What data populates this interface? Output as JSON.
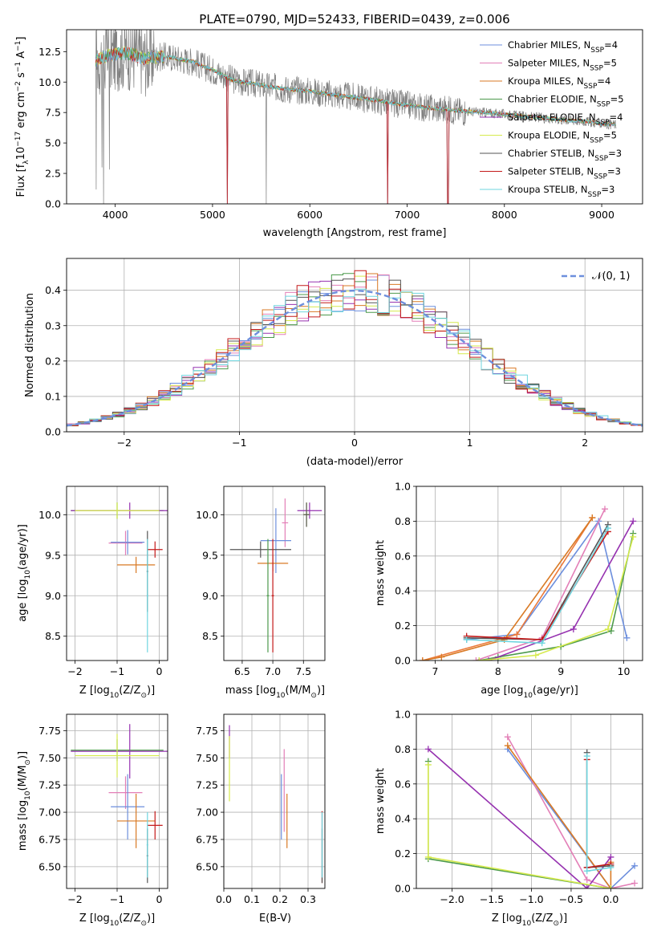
{
  "figure": {
    "title": "PLATE=0790, MJD=52433, FIBERID=0439, z=0.006"
  },
  "palette": {
    "ch_miles": "#6d8fdd",
    "sa_miles": "#e37fb7",
    "kr_miles": "#d97a25",
    "ch_elodie": "#4c9a4c",
    "sa_elodie": "#9632b0",
    "kr_elodie": "#d6ea4e",
    "ch_stelib": "#555555",
    "sa_stelib": "#c41a1a",
    "kr_stelib": "#6fd6df",
    "extra_orange": "#ec7a3a",
    "data_gray": "#808080",
    "grid": "#b0b0b0"
  },
  "chart_data": [
    {
      "id": "spectrum",
      "type": "line",
      "title": "PLATE=0790, MJD=52433, FIBERID=0439, z=0.006",
      "xlabel": "wavelength [Angstrom, rest frame]",
      "ylabel_parts": {
        "a": "Flux [f",
        "a_sub": "λ",
        "b": "10",
        "b_sup": "−17",
        "c": " erg cm",
        "c_sup": "−2",
        "d": " s",
        "d_sup": "−1",
        "e": " A",
        "e_sup": "−1",
        "f": "]"
      },
      "xlim": [
        3500,
        9420
      ],
      "ylim": [
        0,
        14.3
      ],
      "xticks": [
        4000,
        5000,
        6000,
        7000,
        8000,
        9000
      ],
      "yticks": [
        0.0,
        2.5,
        5.0,
        7.5,
        10.0,
        12.5
      ],
      "ytick_labels": [
        "0.0",
        "2.5",
        "5.0",
        "7.5",
        "10.0",
        "12.5"
      ],
      "grid": false,
      "legend_position": "top-right",
      "legend": [
        {
          "base": "Chabrier MILES, N",
          "sub": "SSP",
          "tail": "=4",
          "color": "#6d8fdd"
        },
        {
          "base": "Salpeter MILES, N",
          "sub": "SSP",
          "tail": "=5",
          "color": "#e37fb7"
        },
        {
          "base": "Kroupa MILES, N",
          "sub": "SSP",
          "tail": "=4",
          "color": "#d97a25"
        },
        {
          "base": "Chabrier ELODIE, N",
          "sub": "SSP",
          "tail": "=5",
          "color": "#4c9a4c"
        },
        {
          "base": "Salpeter ELODIE, N",
          "sub": "SSP",
          "tail": "=4",
          "color": "#9632b0"
        },
        {
          "base": "Kroupa ELODIE, N",
          "sub": "SSP",
          "tail": "=5",
          "color": "#d6ea4e"
        },
        {
          "base": "Chabrier STELIB, N",
          "sub": "SSP",
          "tail": "=3",
          "color": "#555555"
        },
        {
          "base": "Salpeter STELIB, N",
          "sub": "SSP",
          "tail": "=3",
          "color": "#c41a1a"
        },
        {
          "base": "Kroupa STELIB, N",
          "sub": "SSP",
          "tail": "=3",
          "color": "#6fd6df"
        }
      ],
      "continuum": [
        [
          3800,
          11.8
        ],
        [
          3900,
          12.1
        ],
        [
          4000,
          12.3
        ],
        [
          4100,
          12.4
        ],
        [
          4200,
          12.2
        ],
        [
          4300,
          11.9
        ],
        [
          4400,
          12.0
        ],
        [
          4500,
          12.1
        ],
        [
          4600,
          12.0
        ],
        [
          4700,
          11.8
        ],
        [
          4800,
          11.7
        ],
        [
          4900,
          11.3
        ],
        [
          5000,
          11.0
        ],
        [
          5100,
          10.6
        ],
        [
          5200,
          10.2
        ],
        [
          5300,
          10.0
        ],
        [
          5400,
          9.9
        ],
        [
          5500,
          9.75
        ],
        [
          5600,
          9.6
        ],
        [
          5800,
          9.4
        ],
        [
          6000,
          9.25
        ],
        [
          6200,
          9.0
        ],
        [
          6400,
          8.8
        ],
        [
          6600,
          8.6
        ],
        [
          6800,
          8.35
        ],
        [
          7000,
          8.1
        ],
        [
          7200,
          7.9
        ],
        [
          7400,
          7.75
        ],
        [
          7600,
          7.6
        ],
        [
          7800,
          7.5
        ],
        [
          8000,
          7.35
        ],
        [
          8200,
          7.2
        ],
        [
          8400,
          7.05
        ],
        [
          8600,
          6.9
        ],
        [
          8800,
          6.8
        ],
        [
          9000,
          6.6
        ],
        [
          9150,
          6.5
        ]
      ],
      "model_dips": [
        {
          "x": 5150,
          "y": 0.0
        },
        {
          "x": 6800,
          "y": 0.0
        },
        {
          "x": 7420,
          "y": 0.0
        }
      ],
      "wave_range": [
        3800,
        9150
      ],
      "noise_amp": 1.2
    },
    {
      "id": "residuals",
      "type": "step",
      "xlabel": "(data-model)/error",
      "ylabel": "Normed distribution",
      "xlim": [
        -2.5,
        2.5
      ],
      "ylim": [
        0,
        0.49
      ],
      "xticks": [
        -2,
        -1,
        0,
        1,
        2
      ],
      "xtick_labels": [
        "−2",
        "−1",
        "0",
        "1",
        "2"
      ],
      "yticks": [
        0.0,
        0.1,
        0.2,
        0.3,
        0.4
      ],
      "ytick_labels": [
        "0.0",
        "0.1",
        "0.2",
        "0.3",
        "0.4"
      ],
      "grid": true,
      "legend_position": "top-right",
      "reference_label": "𝒩(0, 1)",
      "bin_edges": {
        "start": -2.5,
        "step": 0.1,
        "count": 50
      }
    },
    {
      "id": "age_vs_Z",
      "type": "errorbar",
      "xlabel_parts": {
        "a": "Z [log",
        "sub": "10",
        "b": "(Z/Z",
        "sub2": "⊙",
        "c": ")]"
      },
      "ylabel_parts": {
        "a": "age  [log",
        "sub": "10",
        "b": "(age/yr)]"
      },
      "xlim": [
        -2.2,
        0.2
      ],
      "ylim": [
        8.2,
        10.35
      ],
      "xticks": [
        -2,
        -1,
        0
      ],
      "xtick_labels": [
        "−2",
        "−1",
        "0"
      ],
      "yticks": [
        8.5,
        9.0,
        9.5,
        10.0
      ],
      "ytick_labels": [
        "8.5",
        "9.0",
        "9.5",
        "10.0"
      ],
      "grid": true,
      "points": [
        {
          "x": -1.0,
          "y": 10.05,
          "xerr": 1.1,
          "yerr": 0.1,
          "color": "#4c9a4c"
        },
        {
          "x": -0.7,
          "y": 10.05,
          "xerr": 1.4,
          "yerr": 0.1,
          "color": "#9632b0"
        },
        {
          "x": -1.0,
          "y": 10.05,
          "xerr": 1.0,
          "yerr": 0.1,
          "color": "#d6ea4e"
        },
        {
          "x": -0.8,
          "y": 9.65,
          "xerr": 0.4,
          "yerr": 0.15,
          "color": "#e37fb7"
        },
        {
          "x": -0.75,
          "y": 9.66,
          "xerr": 0.4,
          "yerr": 0.15,
          "color": "#6d8fdd"
        },
        {
          "x": -0.55,
          "y": 9.38,
          "xerr": 0.45,
          "yerr": 0.1,
          "color": "#d97a25"
        },
        {
          "x": -0.1,
          "y": 9.57,
          "xerr": 0.18,
          "yerr": 0.1,
          "color": "#c41a1a"
        },
        {
          "x": -0.28,
          "y": 9.3,
          "xerr": 0.02,
          "yerr": 0.5,
          "color": "#555555"
        },
        {
          "x": -0.28,
          "y": 9.0,
          "xerr": 0.02,
          "yerr": 0.7,
          "color": "#6fd6df"
        }
      ]
    },
    {
      "id": "age_vs_mass",
      "type": "errorbar",
      "xlabel_parts": {
        "a": "mass [log",
        "sub": "10",
        "b": "(M/M",
        "sub2": "⊙",
        "c": ")]"
      },
      "xlim": [
        6.2,
        7.85
      ],
      "ylim": [
        8.2,
        10.35
      ],
      "xticks": [
        6.5,
        7.0,
        7.5
      ],
      "xtick_labels": [
        "6.5",
        "7.0",
        "7.5"
      ],
      "yticks": [
        8.5,
        9.0,
        9.5,
        10.0
      ],
      "ytick_labels": [
        "8.5",
        "9.0",
        "9.5",
        "10.0"
      ],
      "grid": true,
      "points": [
        {
          "x": 7.6,
          "y": 10.05,
          "xerr": 0.2,
          "yerr": 0.1,
          "color": "#9632b0"
        },
        {
          "x": 7.55,
          "y": 10.0,
          "xerr": 0.05,
          "yerr": 0.15,
          "color": "#d6ea4e"
        },
        {
          "x": 7.55,
          "y": 10.0,
          "xerr": 0.05,
          "yerr": 0.15,
          "color": "#555555"
        },
        {
          "x": 7.2,
          "y": 9.9,
          "xerr": 0.05,
          "yerr": 0.3,
          "color": "#e37fb7"
        },
        {
          "x": 7.05,
          "y": 9.68,
          "xerr": 0.25,
          "yerr": 0.4,
          "color": "#6d8fdd"
        },
        {
          "x": 7.0,
          "y": 9.4,
          "xerr": 0.25,
          "yerr": 0.1,
          "color": "#d97a25"
        },
        {
          "x": 6.8,
          "y": 9.57,
          "xerr": 0.5,
          "yerr": 0.1,
          "color": "#555555"
        },
        {
          "x": 7.0,
          "y": 9.0,
          "xerr": 0.02,
          "yerr": 0.7,
          "color": "#c41a1a"
        },
        {
          "x": 6.92,
          "y": 9.0,
          "xerr": 0.02,
          "yerr": 0.7,
          "color": "#4c9a4c"
        }
      ]
    },
    {
      "id": "weight_vs_age",
      "type": "line",
      "xlabel_parts": {
        "a": "age  [log",
        "sub": "10",
        "b": "(age/yr)]"
      },
      "ylabel": "mass weight",
      "xlim": [
        6.7,
        10.3
      ],
      "ylim": [
        0,
        1.0
      ],
      "xticks": [
        7,
        8,
        9,
        10
      ],
      "xtick_labels": [
        "7",
        "8",
        "9",
        "10"
      ],
      "yticks": [
        0.0,
        0.2,
        0.4,
        0.6,
        0.8,
        1.0
      ],
      "ytick_labels": [
        "0.0",
        "0.2",
        "0.4",
        "0.6",
        "0.8",
        "1.0"
      ],
      "grid": true,
      "series": [
        {
          "color": "#6d8fdd",
          "x": [
            7.5,
            8.3,
            9.6,
            10.05
          ],
          "y": [
            0.12,
            0.15,
            0.8,
            0.13
          ]
        },
        {
          "color": "#e37fb7",
          "x": [
            7.65,
            8.7,
            9.7
          ],
          "y": [
            0.0,
            0.13,
            0.87
          ]
        },
        {
          "color": "#ec7a3a",
          "x": [
            6.8,
            8.3,
            9.5
          ],
          "y": [
            0.0,
            0.15,
            0.82
          ]
        },
        {
          "color": "#d97a25",
          "x": [
            6.8,
            7.1,
            8.1,
            9.5
          ],
          "y": [
            0.0,
            0.02,
            0.12,
            0.82
          ]
        },
        {
          "color": "#4c9a4c",
          "x": [
            7.7,
            8.0,
            9.0,
            9.8,
            10.15
          ],
          "y": [
            0.0,
            0.02,
            0.08,
            0.17,
            0.73
          ]
        },
        {
          "color": "#9632b0",
          "x": [
            7.85,
            9.2,
            10.15
          ],
          "y": [
            0.0,
            0.18,
            0.8
          ]
        },
        {
          "color": "#d6ea4e",
          "x": [
            7.7,
            8.6,
            9.75,
            10.15
          ],
          "y": [
            0.0,
            0.03,
            0.18,
            0.71
          ]
        },
        {
          "color": "#555555",
          "x": [
            7.5,
            8.7,
            9.75
          ],
          "y": [
            0.13,
            0.12,
            0.78
          ]
        },
        {
          "color": "#c41a1a",
          "x": [
            7.5,
            8.7,
            9.75
          ],
          "y": [
            0.14,
            0.12,
            0.74
          ]
        },
        {
          "color": "#6fd6df",
          "x": [
            7.5,
            8.7,
            9.75
          ],
          "y": [
            0.12,
            0.1,
            0.76
          ]
        }
      ]
    },
    {
      "id": "mass_vs_Z",
      "type": "errorbar",
      "xlabel_parts": {
        "a": "Z [log",
        "sub": "10",
        "b": "(Z/Z",
        "sub2": "⊙",
        "c": ")]"
      },
      "ylabel_parts": {
        "a": "mass [log",
        "sub": "10",
        "b": "(M/M",
        "sub2": "⊙",
        "c": ")]"
      },
      "xlim": [
        -2.2,
        0.2
      ],
      "ylim": [
        6.3,
        7.9
      ],
      "xticks": [
        -2,
        -1,
        0
      ],
      "xtick_labels": [
        "−2",
        "−1",
        "0"
      ],
      "yticks": [
        6.5,
        6.75,
        7.0,
        7.25,
        7.5,
        7.75
      ],
      "ytick_labels": [
        "6.50",
        "6.75",
        "7.00",
        "7.25",
        "7.50",
        "7.75"
      ],
      "grid": true,
      "points": [
        {
          "x": -1.0,
          "y": 7.57,
          "xerr": 1.1,
          "yerr": 0.1,
          "color": "#4c9a4c"
        },
        {
          "x": -0.7,
          "y": 7.56,
          "xerr": 1.4,
          "yerr": 0.25,
          "color": "#9632b0"
        },
        {
          "x": -1.0,
          "y": 7.52,
          "xerr": 1.0,
          "yerr": 0.2,
          "color": "#d6ea4e"
        },
        {
          "x": -0.8,
          "y": 7.18,
          "xerr": 0.4,
          "yerr": 0.15,
          "color": "#e37fb7"
        },
        {
          "x": -0.75,
          "y": 7.05,
          "xerr": 0.4,
          "yerr": 0.3,
          "color": "#6d8fdd"
        },
        {
          "x": -0.55,
          "y": 6.92,
          "xerr": 0.45,
          "yerr": 0.25,
          "color": "#d97a25"
        },
        {
          "x": -0.1,
          "y": 6.88,
          "xerr": 0.18,
          "yerr": 0.13,
          "color": "#c41a1a"
        },
        {
          "x": -0.28,
          "y": 6.6,
          "xerr": 0.02,
          "yerr": 0.25,
          "color": "#555555"
        },
        {
          "x": -0.28,
          "y": 6.7,
          "xerr": 0.02,
          "yerr": 0.3,
          "color": "#6fd6df"
        }
      ]
    },
    {
      "id": "mass_vs_ebv",
      "type": "errorbar",
      "xlabel": "E(B-V)",
      "xlim": [
        0.0,
        0.36
      ],
      "ylim": [
        6.3,
        7.9
      ],
      "xticks": [
        0.0,
        0.1,
        0.2,
        0.3
      ],
      "xtick_labels": [
        "0.0",
        "0.1",
        "0.2",
        "0.3"
      ],
      "yticks": [
        6.5,
        6.75,
        7.0,
        7.25,
        7.5,
        7.75
      ],
      "ytick_labels": [
        "6.50",
        "6.75",
        "7.00",
        "7.25",
        "7.50",
        "7.75"
      ],
      "grid": true,
      "points": [
        {
          "x": 0.02,
          "y": 7.65,
          "xerr": 0.0,
          "yerr": 0.15,
          "color": "#9632b0"
        },
        {
          "x": 0.02,
          "y": 7.4,
          "xerr": 0.0,
          "yerr": 0.3,
          "color": "#d6ea4e"
        },
        {
          "x": 0.205,
          "y": 7.05,
          "xerr": 0.0,
          "yerr": 0.3,
          "color": "#6d8fdd"
        },
        {
          "x": 0.215,
          "y": 7.2,
          "xerr": 0.0,
          "yerr": 0.38,
          "color": "#e37fb7"
        },
        {
          "x": 0.225,
          "y": 6.92,
          "xerr": 0.0,
          "yerr": 0.25,
          "color": "#d97a25"
        },
        {
          "x": 0.35,
          "y": 6.68,
          "xerr": 0.0,
          "yerr": 0.33,
          "color": "#c41a1a"
        },
        {
          "x": 0.35,
          "y": 6.6,
          "xerr": 0.0,
          "yerr": 0.25,
          "color": "#555555"
        },
        {
          "x": 0.35,
          "y": 6.7,
          "xerr": 0.0,
          "yerr": 0.3,
          "color": "#6fd6df"
        }
      ]
    },
    {
      "id": "weight_vs_Z",
      "type": "line",
      "xlabel_parts": {
        "a": "Z [log",
        "sub": "10",
        "b": "(Z/Z",
        "sub2": "⊙",
        "c": ")]"
      },
      "ylabel": "mass weight",
      "xlim": [
        -2.45,
        0.4
      ],
      "ylim": [
        0,
        1.0
      ],
      "xticks": [
        -2.0,
        -1.5,
        -1.0,
        -0.5,
        0.0
      ],
      "xtick_labels": [
        "−2.0",
        "−1.5",
        "−1.0",
        "−0.5",
        "0.0"
      ],
      "yticks": [
        0.0,
        0.2,
        0.4,
        0.6,
        0.8,
        1.0
      ],
      "ytick_labels": [
        "0.0",
        "0.2",
        "0.4",
        "0.6",
        "0.8",
        "1.0"
      ],
      "grid": true,
      "series": [
        {
          "color": "#6d8fdd",
          "x": [
            -1.3,
            0.0,
            0.3
          ],
          "y": [
            0.8,
            0.0,
            0.13
          ]
        },
        {
          "color": "#e37fb7",
          "x": [
            -1.3,
            -0.3,
            0.0,
            0.3
          ],
          "y": [
            0.87,
            0.05,
            0.0,
            0.03
          ]
        },
        {
          "color": "#d97a25",
          "x": [
            -1.3,
            0.0,
            0.0
          ],
          "y": [
            0.82,
            0.0,
            0.15
          ]
        },
        {
          "color": "#4c9a4c",
          "x": [
            -2.3,
            -2.3,
            0.0
          ],
          "y": [
            0.73,
            0.17,
            0.0
          ]
        },
        {
          "color": "#9632b0",
          "x": [
            -2.3,
            -0.3,
            0.0
          ],
          "y": [
            0.8,
            0.0,
            0.18
          ]
        },
        {
          "color": "#d6ea4e",
          "x": [
            -2.3,
            -2.3,
            0.0
          ],
          "y": [
            0.71,
            0.18,
            0.0
          ]
        },
        {
          "color": "#555555",
          "x": [
            -0.3,
            -0.3,
            0.0
          ],
          "y": [
            0.78,
            0.12,
            0.13
          ]
        },
        {
          "color": "#c41a1a",
          "x": [
            -0.3,
            -0.3,
            0.0
          ],
          "y": [
            0.74,
            0.12,
            0.14
          ]
        },
        {
          "color": "#6fd6df",
          "x": [
            -0.3,
            -0.3,
            0.0
          ],
          "y": [
            0.76,
            0.1,
            0.12
          ]
        }
      ]
    }
  ]
}
